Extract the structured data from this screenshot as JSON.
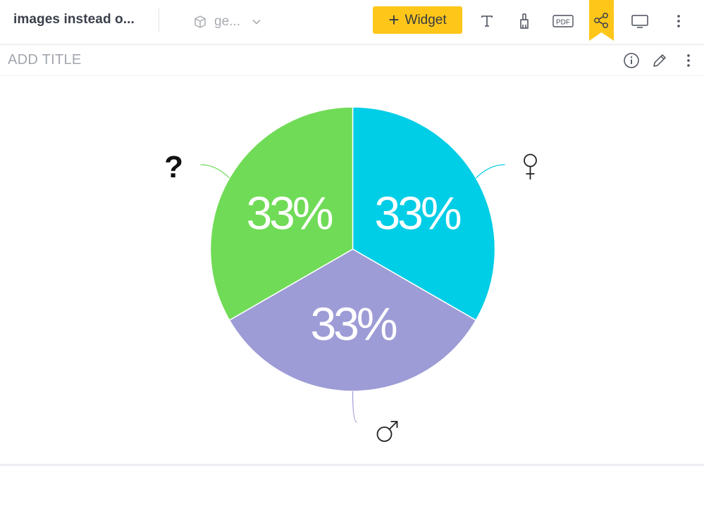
{
  "header": {
    "app_title": "images instead o...",
    "dataset_label": "ge...",
    "widget_button_label": "Widget",
    "pdf_label": "PDF",
    "icons": {
      "dataset": "cube-icon",
      "dropdown": "chevron-down-icon",
      "text": "text-icon",
      "paint": "paint-brush-icon",
      "pdf": "pdf-icon",
      "share": "share-icon",
      "present": "monitor-icon",
      "more": "more-vertical-icon"
    },
    "accent_color": "#ffc61a"
  },
  "widget_bar": {
    "title_placeholder": "ADD TITLE",
    "icons": [
      "info-icon",
      "edit-pencil-icon",
      "more-vertical-icon"
    ]
  },
  "chart_data": {
    "type": "pie",
    "slices": [
      {
        "label": "33%",
        "value": 33.3,
        "color": "#00cde6",
        "category_icon": "female-symbol"
      },
      {
        "label": "33%",
        "value": 33.3,
        "color": "#9e9cd6",
        "category_icon": "male-symbol"
      },
      {
        "label": "33%",
        "value": 33.3,
        "color": "#70db56",
        "category_icon": "question-mark"
      }
    ],
    "start_angle_deg": 0,
    "direction": "clockwise",
    "legend": "none"
  }
}
